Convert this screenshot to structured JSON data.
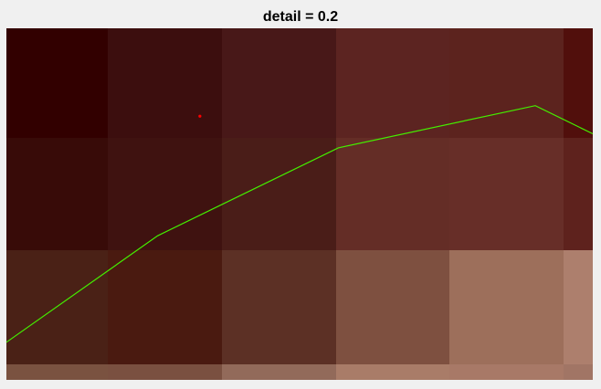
{
  "chart_data": {
    "type": "heatmap",
    "title": "detail = 0.2",
    "grid_columns": 6,
    "grid_rows": 4,
    "cells": [
      [
        "#320000",
        "#3c0e0e",
        "#481818",
        "#5c2421",
        "#5c231e",
        "#510f0c"
      ],
      [
        "#380b08",
        "#3f1210",
        "#4a1d18",
        "#642d26",
        "#672e28",
        "#5e221d"
      ],
      [
        "#4a2116",
        "#4a1a10",
        "#5c3025",
        "#7e5040",
        "#9d6f5b",
        "#ad7f6d"
      ],
      [
        "#7a5240",
        "#7a5040",
        "#926a5a",
        "#a97c68",
        "#a87967",
        "#a17565"
      ]
    ],
    "line": {
      "color": "#44ee00",
      "points": [
        [
          0,
          0.893
        ],
        [
          0.258,
          0.59
        ],
        [
          0.566,
          0.34
        ],
        [
          0.902,
          0.22
        ],
        [
          1.0,
          0.3
        ]
      ]
    },
    "marker": {
      "color": "#ff0000",
      "point": [
        0.33,
        0.25
      ]
    }
  }
}
